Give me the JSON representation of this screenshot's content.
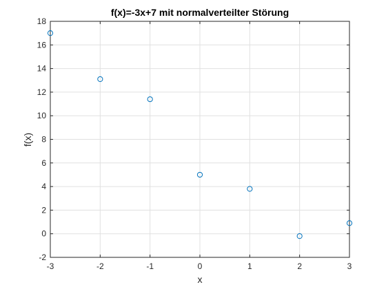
{
  "chart_data": {
    "type": "scatter",
    "title": "f(x)=-3x+7 mit normalverteilter Störung",
    "xlabel": "x",
    "ylabel": "f(x)",
    "xlim": [
      -3,
      3
    ],
    "ylim": [
      -2,
      18
    ],
    "xticks": [
      -3,
      -2,
      -1,
      0,
      1,
      2,
      3
    ],
    "yticks": [
      -2,
      0,
      2,
      4,
      6,
      8,
      10,
      12,
      14,
      16,
      18
    ],
    "grid": true,
    "marker": "circle",
    "series_color": "#0072BD",
    "x": [
      -3,
      -2,
      -1,
      0,
      1,
      2,
      3
    ],
    "y": [
      17.0,
      13.1,
      11.4,
      5.0,
      3.8,
      -0.2,
      0.9
    ]
  }
}
